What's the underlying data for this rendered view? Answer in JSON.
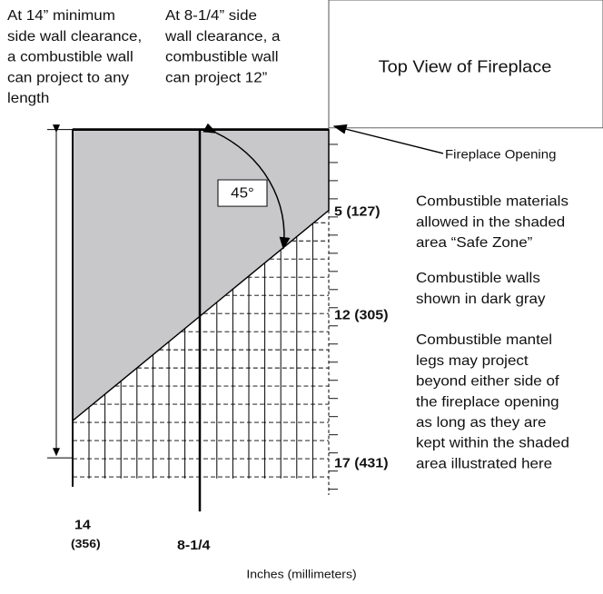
{
  "header": {
    "left_note": [
      "At 14” minimum",
      "side wall clearance,",
      "a combustible wall",
      "can project to any",
      "length"
    ],
    "middle_note": [
      "At 8-1/4” side",
      "wall clearance, a",
      "combustible wall",
      "can project 12”"
    ],
    "top_view": "Top View of Fireplace"
  },
  "diagram": {
    "opening": "Fireplace Opening",
    "angle": "45°",
    "right_marks": [
      "5 (127)",
      "12 (305)",
      "17 (431)"
    ],
    "bottom_marks": [
      "14",
      "(356)",
      "8-1/4"
    ],
    "units": "Inches (millimeters)"
  },
  "notes": [
    [
      "Combustible materials",
      "allowed in the shaded",
      "area “Safe Zone”"
    ],
    [
      "Combustible walls",
      "shown in dark gray"
    ],
    [
      "Combustible mantel",
      "legs may project",
      "beyond either side of",
      "the fireplace opening",
      "as long as they are",
      "kept within the shaded",
      "area illustrated here"
    ]
  ]
}
